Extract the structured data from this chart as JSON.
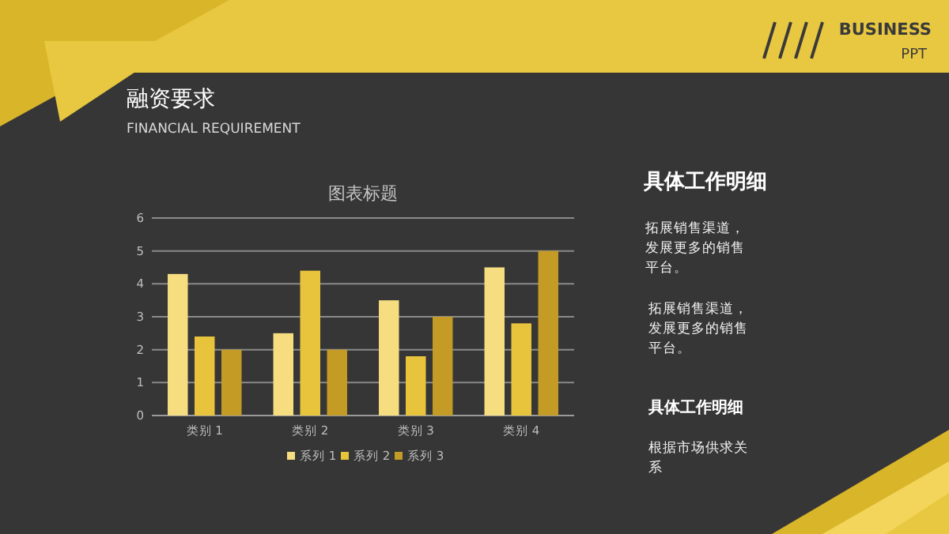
{
  "chart_data": {
    "type": "bar",
    "title": "图表标题",
    "categories": [
      "类别 1",
      "类别 2",
      "类别 3",
      "类别 4"
    ],
    "series": [
      {
        "name": "系列 1",
        "color": "#f5dd80",
        "values": [
          4.3,
          2.5,
          3.5,
          4.5
        ]
      },
      {
        "name": "系列 2",
        "color": "#e8c33c",
        "values": [
          2.4,
          4.4,
          1.8,
          2.8
        ]
      },
      {
        "name": "系列 3",
        "color": "#c49b25",
        "values": [
          2,
          2,
          3,
          5
        ]
      }
    ],
    "ylim": [
      0,
      6
    ],
    "yticks": [
      0,
      1,
      2,
      3,
      4,
      5,
      6
    ],
    "grid": "y",
    "legend": "bottom",
    "annotations": [
      "融资要求",
      "FINANCIAL REQUIREMENT",
      "BUSINESS",
      "PPT",
      "具体工作明细",
      "拓展销售渠道，发展更多的销售平台。",
      "拓展销售渠道，发展更多的销售平台。",
      "具体工作明细",
      "根据市场供求关系"
    ]
  }
}
